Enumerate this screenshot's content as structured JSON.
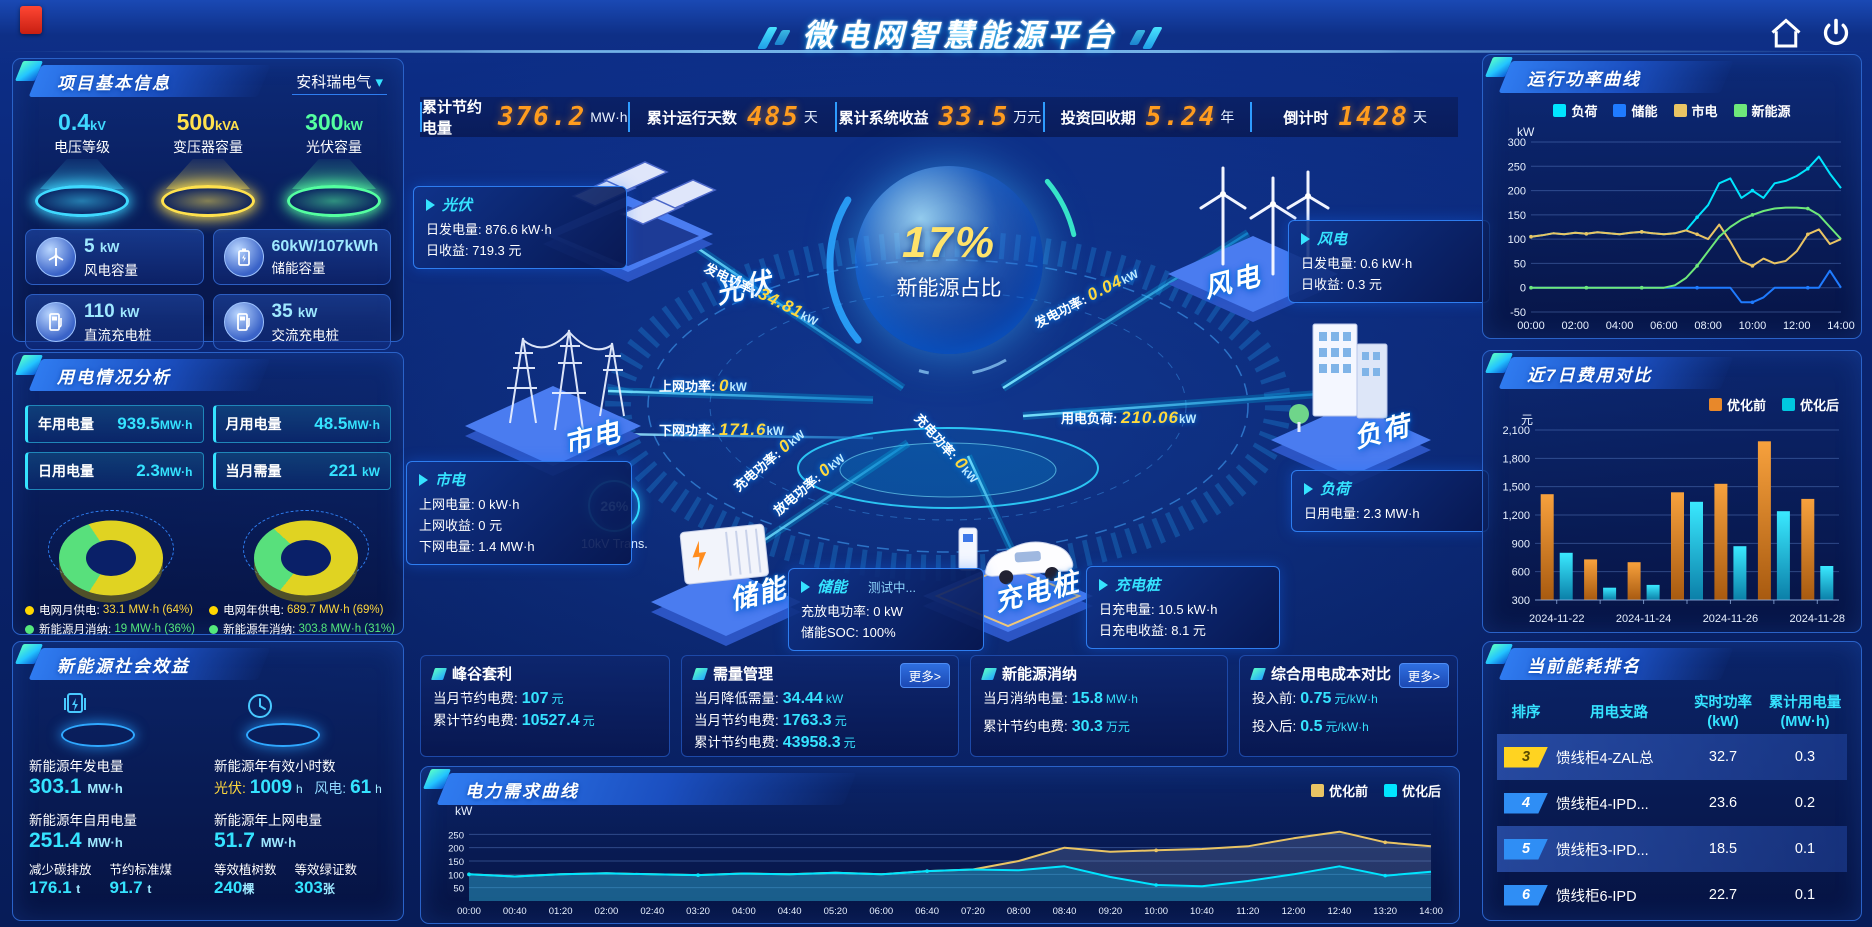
{
  "header": {
    "title": "微电网智慧能源平台"
  },
  "kpi": {
    "items": [
      {
        "label": "累计节约电量",
        "value": "376.2",
        "unit": "MW·h"
      },
      {
        "label": "累计运行天数",
        "value": "485",
        "unit": "天"
      },
      {
        "label": "累计系统收益",
        "value": "33.5",
        "unit": "万元"
      },
      {
        "label": "投资回收期",
        "value": "5.24",
        "unit": "年"
      },
      {
        "label": "倒计时",
        "value": "1428",
        "unit": "天"
      }
    ]
  },
  "left": {
    "project": {
      "title": "项目基本信息",
      "selector": "安科瑞电气",
      "pedestals": [
        {
          "value": "0.4",
          "unit": "kV",
          "label": "电压等级",
          "color": "#3fd9ff"
        },
        {
          "value": "500",
          "unit": "kVA",
          "label": "变压器容量",
          "color": "#ffe14d"
        },
        {
          "value": "300",
          "unit": "kW",
          "label": "光伏容量",
          "color": "#54ffa0"
        }
      ],
      "cards": [
        {
          "value": "5",
          "unit": "kW",
          "label": "风电容量"
        },
        {
          "value": "60kW/107kWh",
          "unit": "",
          "label": "储能容量"
        },
        {
          "value": "110",
          "unit": "kW",
          "label": "直流充电桩"
        },
        {
          "value": "35",
          "unit": "kW",
          "label": "交流充电桩"
        }
      ]
    },
    "power": {
      "title": "用电情况分析",
      "stats": [
        {
          "label": "年用电量",
          "value": "939.5",
          "unit": "MW·h"
        },
        {
          "label": "月用电量",
          "value": "48.5",
          "unit": "MW·h"
        },
        {
          "label": "日用电量",
          "value": "2.3",
          "unit": "MW·h"
        },
        {
          "label": "当月需量",
          "value": "221",
          "unit": "kW"
        }
      ],
      "donuts": [
        {
          "grid_pct": 64,
          "new_energy_pct": 36
        },
        {
          "grid_pct": 69,
          "new_energy_pct": 31
        }
      ],
      "legend": [
        {
          "label": "电网月供电:",
          "value": "33.1 MW·h (64%)"
        },
        {
          "label": "新能源月消纳:",
          "value": "19 MW·h (36%)"
        },
        {
          "label": "电网年供电:",
          "value": "689.7 MW·h (69%)"
        },
        {
          "label": "新能源年消纳:",
          "value": "303.8 MW·h (31%)"
        }
      ]
    },
    "social": {
      "title": "新能源社会效益",
      "gen": {
        "label": "新能源年发电量",
        "value": "303.1",
        "unit": "MW·h"
      },
      "hours": {
        "label": "新能源年有效小时数",
        "pv_k": "光伏:",
        "pv_v": "1009",
        "pv_u": "h",
        "wind_k": "风电:",
        "wind_v": "61",
        "wind_u": "h"
      },
      "self": {
        "label": "新能源年自用电量",
        "value": "251.4",
        "unit": "MW·h"
      },
      "feed": {
        "label": "新能源年上网电量",
        "value": "51.7",
        "unit": "MW·h"
      },
      "mini": [
        {
          "label": "减少碳排放",
          "value": "176.1",
          "unit": "t"
        },
        {
          "label": "节约标准煤",
          "value": "91.7",
          "unit": "t"
        },
        {
          "label": "等效植树数",
          "value": "240",
          "unit": "棵"
        },
        {
          "label": "等效绿证数",
          "value": "303",
          "unit": "张"
        }
      ]
    }
  },
  "diagram": {
    "center": {
      "value": "17%",
      "label": "新能源占比"
    },
    "trans": {
      "value": "26%",
      "label": "10kV Trans."
    },
    "nodes": {
      "pv": "光伏",
      "wind": "风电",
      "grid": "市电",
      "load": "负荷",
      "storage": "储能",
      "charger": "充电桩"
    },
    "flows": {
      "pv_gen": {
        "k": "发电功率:",
        "v": "34.81",
        "u": "kW"
      },
      "grid_up": {
        "k": "上网功率:",
        "v": "0",
        "u": "kW"
      },
      "grid_down": {
        "k": "下网功率:",
        "v": "171.6",
        "u": "kW"
      },
      "wind_gen": {
        "k": "发电功率:",
        "v": "0.04",
        "u": "kW"
      },
      "load_use": {
        "k": "用电负荷:",
        "v": "210.06",
        "u": "kW"
      },
      "bat_charge": {
        "k": "充电功率:",
        "v": "0",
        "u": "kW"
      },
      "bat_discharge": {
        "k": "放电功率:",
        "v": "0",
        "u": "kW"
      },
      "ev_charge": {
        "k": "充电功率:",
        "v": "0",
        "u": "kW"
      }
    },
    "callouts": {
      "pv": {
        "title": "光伏",
        "rows": [
          {
            "k": "日发电量:",
            "v": "876.6 kW·h"
          },
          {
            "k": "日收益:",
            "v": "719.3 元"
          }
        ]
      },
      "grid": {
        "title": "市电",
        "rows": [
          {
            "k": "上网电量:",
            "v": "0 kW·h"
          },
          {
            "k": "上网收益:",
            "v": "0 元"
          },
          {
            "k": "下网电量:",
            "v": "1.4 MW·h"
          }
        ]
      },
      "wind": {
        "title": "风电",
        "rows": [
          {
            "k": "日发电量:",
            "v": "0.6 kW·h"
          },
          {
            "k": "日收益:",
            "v": "0.3 元"
          }
        ]
      },
      "load": {
        "title": "负荷",
        "rows": [
          {
            "k": "日用电量:",
            "v": "2.3 MW·h"
          }
        ]
      },
      "storage": {
        "title": "储能",
        "badge": "测试中...",
        "rows": [
          {
            "k": "充放电功率:",
            "v": "0 kW"
          },
          {
            "k": "储能SOC:",
            "v": "100%"
          }
        ]
      },
      "charger": {
        "title": "充电桩",
        "rows": [
          {
            "k": "日充电量:",
            "v": "10.5 kW·h"
          },
          {
            "k": "日充电收益:",
            "v": "8.1 元"
          }
        ]
      }
    }
  },
  "mini": [
    {
      "title": "峰谷套利",
      "rows": [
        {
          "k": "当月节约电费:",
          "v": "107",
          "u": "元"
        },
        {
          "k": "累计节约电费:",
          "v": "10527.4",
          "u": "元"
        }
      ]
    },
    {
      "title": "需量管理",
      "more": "更多>",
      "rows": [
        {
          "k": "当月降低需量:",
          "v": "34.44",
          "u": "kW"
        },
        {
          "k": "当月节约电费:",
          "v": "1763.3",
          "u": "元"
        },
        {
          "k": "累计节约电费:",
          "v": "43958.3",
          "u": "元"
        }
      ]
    },
    {
      "title": "新能源消纳",
      "rows": [
        {
          "k": "当月消纳电量:",
          "v": "15.8",
          "u": "MW·h"
        },
        {
          "k": "累计节约电费:",
          "v": "30.3",
          "u": "万元"
        }
      ]
    },
    {
      "title": "综合用电成本对比",
      "more": "更多>",
      "rows": [
        {
          "k": "投入前:",
          "v": "0.75",
          "u": "元/kW·h"
        },
        {
          "k": "投入后:",
          "v": "0.5",
          "u": "元/kW·h"
        }
      ]
    }
  ],
  "right": {
    "ranking": {
      "title": "当前能耗排名",
      "cols": [
        {
          "a": "排序",
          "b": ""
        },
        {
          "a": "用电支路",
          "b": ""
        },
        {
          "a": "实时功率",
          "b": "(kW)"
        },
        {
          "a": "累计用电量",
          "b": "(MW·h)"
        }
      ],
      "rows": [
        {
          "rank": "3",
          "name": "馈线柜4-ZAL总",
          "power": "32.7",
          "energy": "0.3"
        },
        {
          "rank": "4",
          "name": "馈线柜4-IPD...",
          "power": "23.6",
          "energy": "0.2"
        },
        {
          "rank": "5",
          "name": "馈线柜3-IPD...",
          "power": "18.5",
          "energy": "0.1"
        },
        {
          "rank": "6",
          "name": "馈线柜6-IPD",
          "power": "22.7",
          "energy": "0.1"
        }
      ]
    }
  },
  "chart_data": [
    {
      "id": "power-curve",
      "type": "line",
      "title": "运行功率曲线",
      "ylabel": "kW",
      "ylim": [
        -50,
        300
      ],
      "yticks": [
        -50,
        0,
        50,
        100,
        150,
        200,
        250,
        300
      ],
      "grid": true,
      "legend_position": "top",
      "x": [
        "00:00",
        "00:30",
        "01:00",
        "01:30",
        "02:00",
        "02:30",
        "03:00",
        "03:30",
        "04:00",
        "04:30",
        "05:00",
        "05:30",
        "06:00",
        "06:30",
        "07:00",
        "07:30",
        "08:00",
        "08:30",
        "09:00",
        "09:30",
        "10:00",
        "10:30",
        "11:00",
        "11:30",
        "12:00",
        "12:30",
        "13:00",
        "13:30",
        "14:00"
      ],
      "xtick_every": 4,
      "series": [
        {
          "name": "负荷",
          "color": "#00e5ff",
          "values": [
            105,
            108,
            112,
            110,
            113,
            111,
            114,
            112,
            110,
            113,
            115,
            112,
            110,
            112,
            118,
            145,
            170,
            215,
            225,
            185,
            200,
            185,
            215,
            220,
            230,
            245,
            270,
            235,
            205
          ]
        },
        {
          "name": "储能",
          "color": "#1f7bff",
          "values": [
            0,
            0,
            0,
            0,
            0,
            0,
            0,
            0,
            0,
            0,
            0,
            0,
            0,
            0,
            0,
            0,
            0,
            0,
            0,
            -30,
            -30,
            -20,
            0,
            0,
            0,
            0,
            0,
            35,
            0
          ]
        },
        {
          "name": "市电",
          "color": "#e9c464",
          "values": [
            105,
            108,
            112,
            110,
            113,
            111,
            114,
            112,
            110,
            113,
            115,
            112,
            110,
            112,
            118,
            110,
            100,
            130,
            95,
            55,
            45,
            60,
            50,
            55,
            75,
            110,
            120,
            90,
            100
          ]
        },
        {
          "name": "新能源",
          "color": "#6ee87a",
          "values": [
            0,
            0,
            0,
            0,
            0,
            0,
            0,
            0,
            0,
            0,
            0,
            0,
            0,
            5,
            20,
            45,
            75,
            105,
            125,
            140,
            150,
            158,
            163,
            165,
            165,
            163,
            150,
            125,
            100
          ]
        }
      ]
    },
    {
      "id": "cost-compare",
      "type": "bar",
      "title": "近7日费用对比",
      "ylabel": "元",
      "ylim": [
        300,
        2100
      ],
      "yticks": [
        300,
        600,
        900,
        1200,
        1500,
        1800,
        2100
      ],
      "grid": true,
      "legend_position": "top",
      "categories": [
        "2024-11-22",
        "2024-11-23",
        "2024-11-24",
        "2024-11-25",
        "2024-11-26",
        "2024-11-27",
        "2024-11-28"
      ],
      "xtick_every": 2,
      "series": [
        {
          "name": "优化前",
          "color": "#e8882a",
          "values": [
            1420,
            730,
            700,
            1440,
            1530,
            1980,
            1370
          ]
        },
        {
          "name": "优化后",
          "color": "#00c8e0",
          "values": [
            800,
            430,
            460,
            1340,
            870,
            1240,
            660
          ]
        }
      ]
    },
    {
      "id": "demand-curve",
      "type": "line",
      "title": "电力需求曲线",
      "ylabel": "kW",
      "ylim": [
        0,
        300
      ],
      "yticks": [
        50,
        100,
        150,
        200,
        250
      ],
      "grid": true,
      "legend_position": "top-right",
      "x": [
        "00:00",
        "00:40",
        "01:20",
        "02:00",
        "02:40",
        "03:20",
        "04:00",
        "04:40",
        "05:20",
        "06:00",
        "06:40",
        "07:20",
        "08:00",
        "08:40",
        "09:20",
        "10:00",
        "10:40",
        "11:20",
        "12:00",
        "12:40",
        "13:20",
        "14:00"
      ],
      "xtick_every": 1,
      "small_ticks": true,
      "series": [
        {
          "name": "优化前",
          "color": "#e9c464",
          "fill": "rgba(150,170,205,0.22)",
          "values": [
            100,
            92,
            100,
            104,
            100,
            97,
            103,
            100,
            106,
            100,
            112,
            118,
            150,
            200,
            185,
            190,
            195,
            205,
            235,
            260,
            220,
            205
          ]
        },
        {
          "name": "优化后",
          "color": "#00e5ff",
          "fill": "rgba(0,190,230,0.30)",
          "values": [
            100,
            92,
            100,
            104,
            100,
            97,
            103,
            100,
            106,
            100,
            112,
            118,
            115,
            130,
            90,
            60,
            55,
            75,
            100,
            130,
            95,
            110
          ]
        }
      ]
    }
  ]
}
